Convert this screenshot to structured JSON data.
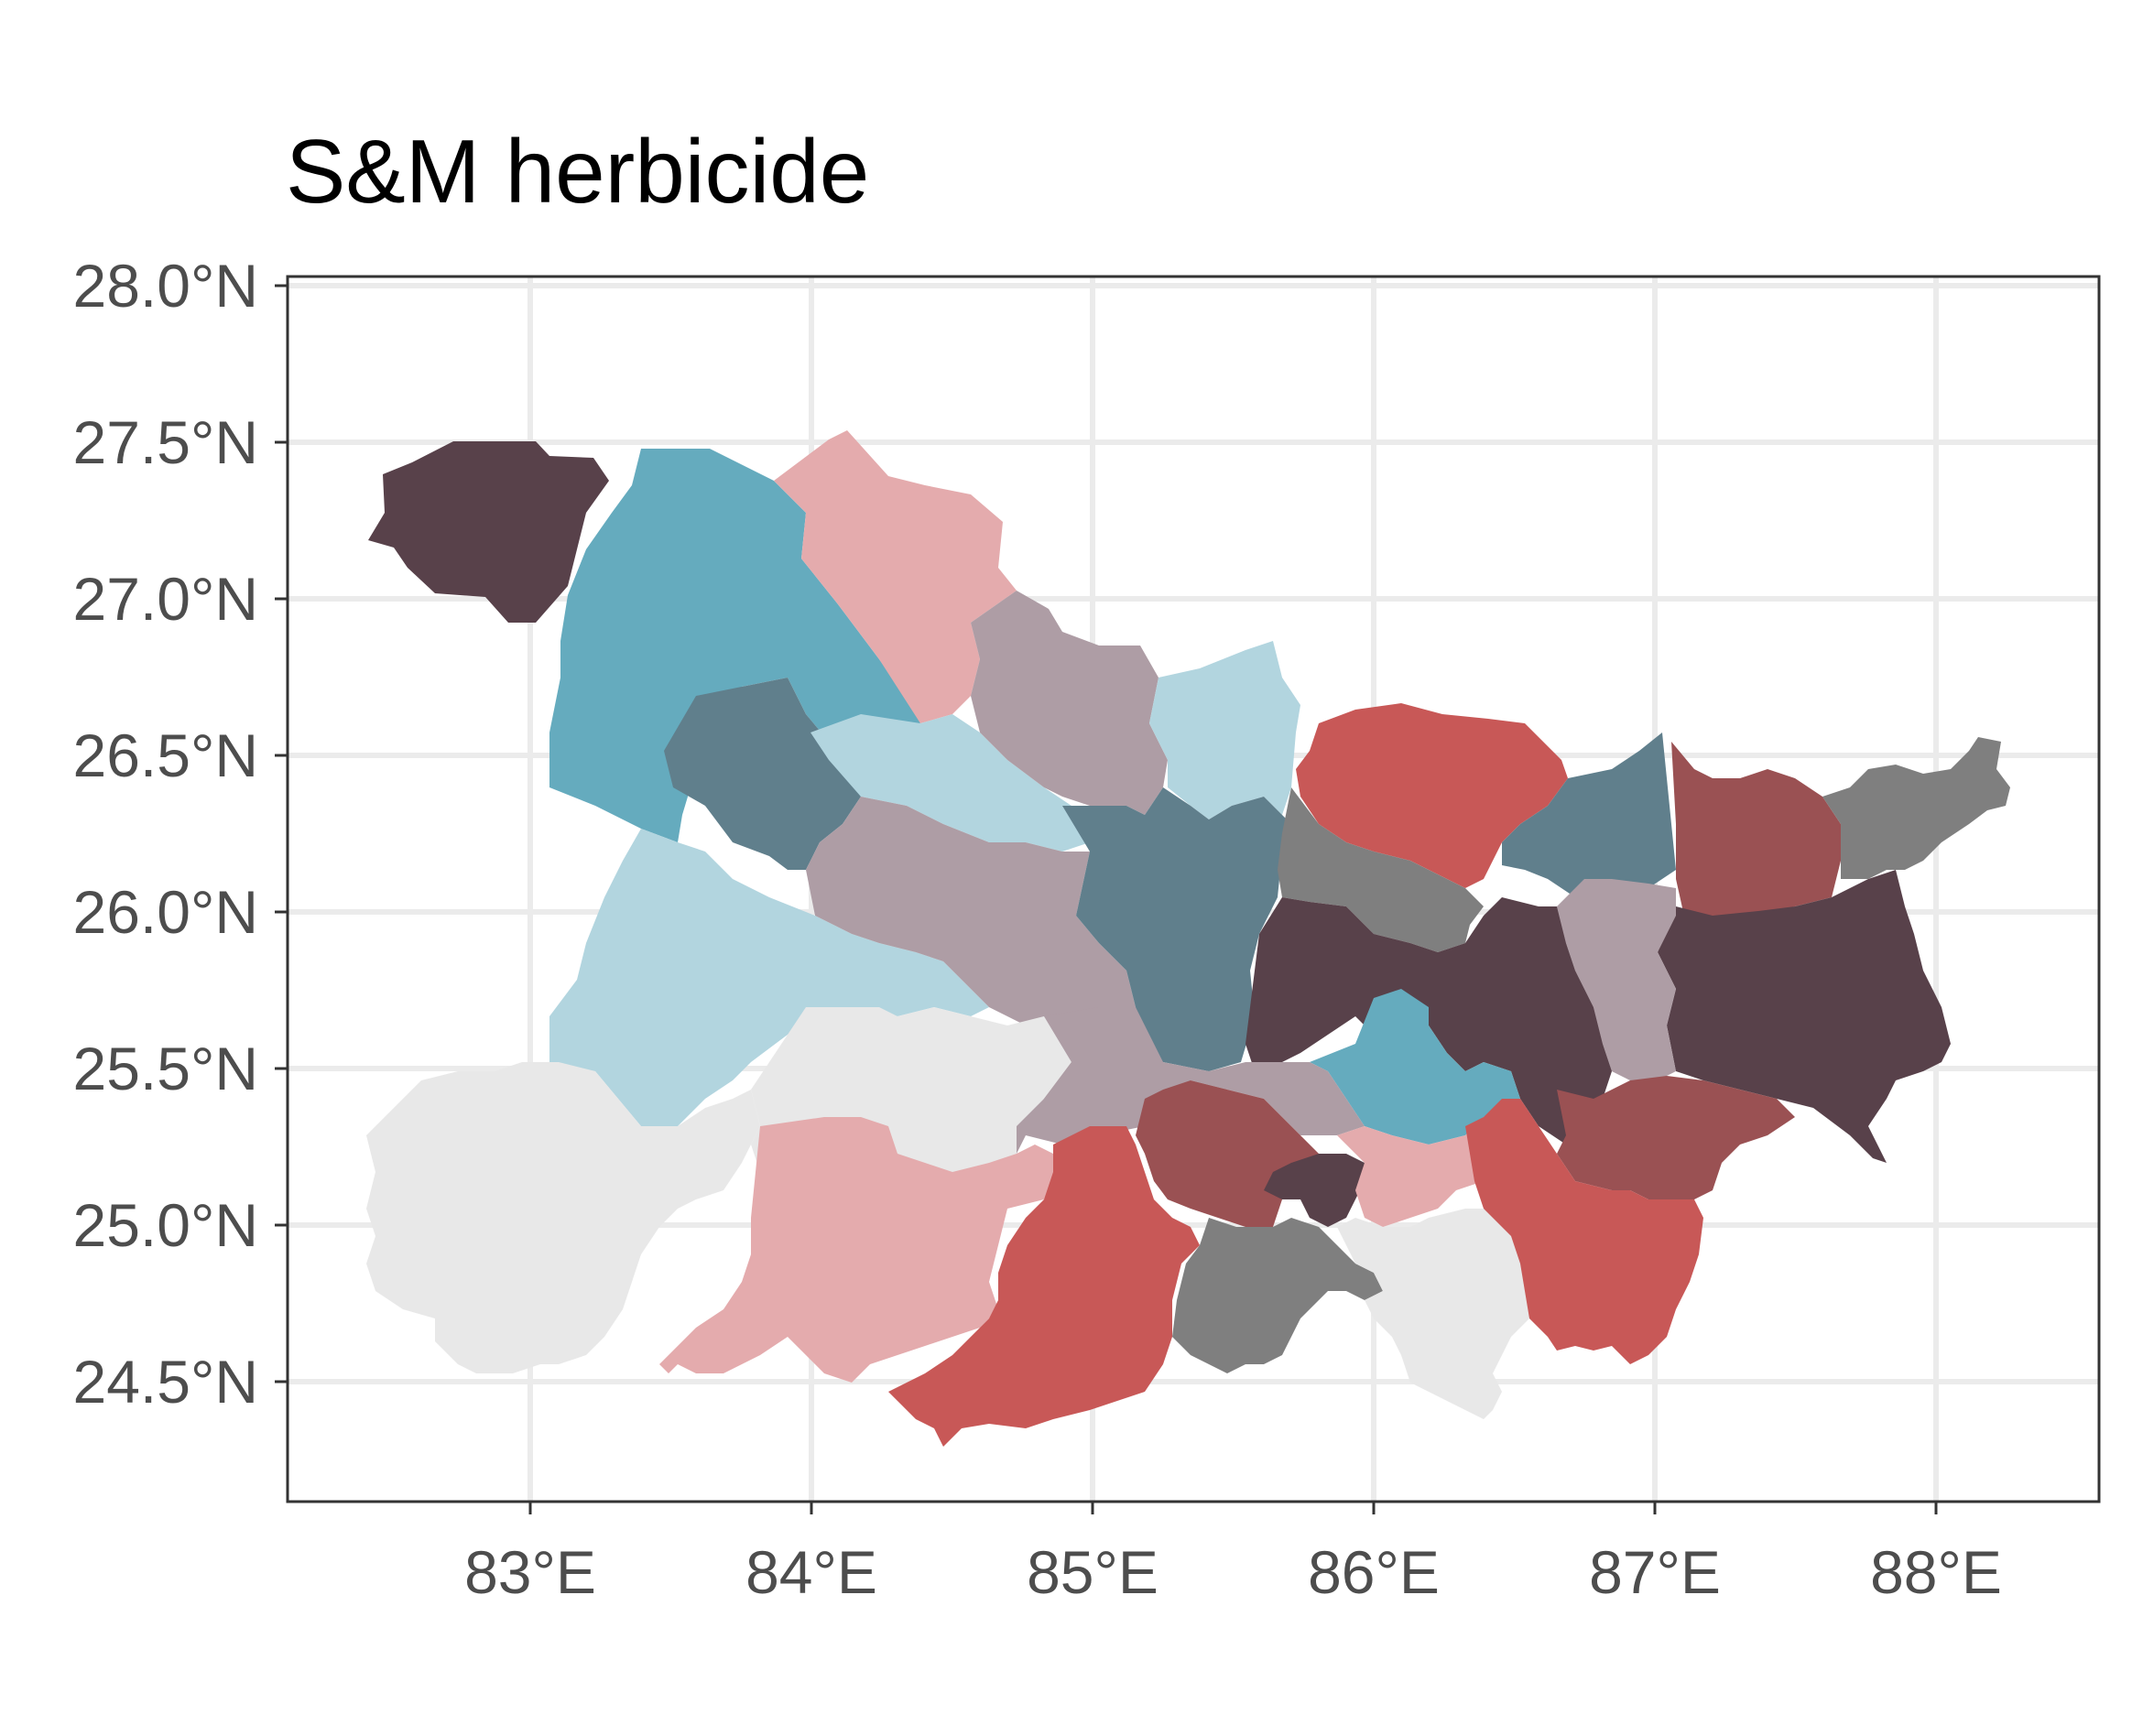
{
  "title": "S&M herbicide",
  "axes": {
    "y_ticks": [
      "28.0°N",
      "27.5°N",
      "27.0°N",
      "26.5°N",
      "26.0°N",
      "25.5°N",
      "25.0°N",
      "24.5°N"
    ],
    "x_ticks": [
      "83°E",
      "84°E",
      "85°E",
      "86°E",
      "87°E",
      "88°E"
    ],
    "lon_range": [
      82.15,
      88.6
    ],
    "lat_range": [
      24.2,
      28.05
    ]
  },
  "grid": true,
  "colors": {
    "background": "#ffffff",
    "grid": "#ebebeb",
    "panel_border": "#333333",
    "tick_label": "#4d4d4d",
    "dark_plum": "#58414a",
    "steel_blue": "#65abbe",
    "light_blue": "#b2d5df",
    "slate": "#607f8c",
    "mauve": "#ae9da5",
    "light_pink": "#e4abad",
    "red": "#c85857",
    "maroon": "#9a5153",
    "gray": "#7f7f7f",
    "light_gray": "#e8e8e8"
  },
  "legend": "none"
}
